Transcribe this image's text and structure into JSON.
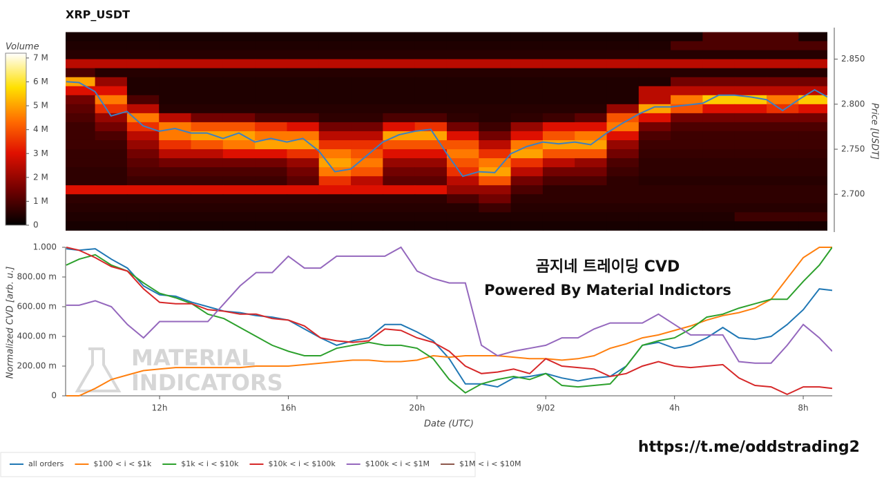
{
  "chart_data": [
    {
      "type": "heatmap",
      "title": "XRP_USDT",
      "ylabel": "Price [USDT]",
      "xlim": [
        9.08,
        32.9
      ],
      "ylim": [
        2.658,
        2.885
      ],
      "yticks": [
        {
          "value": 2.7,
          "label": "2.700"
        },
        {
          "value": 2.75,
          "label": "2.750"
        },
        {
          "value": 2.8,
          "label": "2.800"
        },
        {
          "value": 2.85,
          "label": "2.850"
        }
      ],
      "colorbar_title": "Volume",
      "zlim": [
        0,
        7.2
      ],
      "colorbar_ticks": [
        0,
        {
          "value": 1,
          "label": "1 M"
        },
        {
          "value": 2,
          "label": "2 M"
        },
        {
          "value": 3,
          "label": "3 M"
        },
        {
          "value": 4,
          "label": "4 M"
        },
        {
          "value": 5,
          "label": "5 M"
        },
        {
          "value": 6,
          "label": "6 M"
        },
        {
          "value": 7,
          "label": "7 M"
        }
      ],
      "x": [
        9.5,
        10.5,
        11.5,
        12.5,
        13.5,
        14.5,
        15.5,
        16.5,
        17.5,
        18.5,
        19.5,
        20.5,
        21.5,
        22.5,
        23.5,
        24.5,
        25.5,
        26.5,
        27.5,
        28.5,
        29.5,
        30.5,
        31.5,
        32.5
      ],
      "y": [
        2.875,
        2.865,
        2.855,
        2.845,
        2.835,
        2.825,
        2.815,
        2.805,
        2.795,
        2.785,
        2.775,
        2.765,
        2.755,
        2.745,
        2.735,
        2.725,
        2.715,
        2.705,
        2.695,
        2.685,
        2.675,
        2.665
      ],
      "z": [
        [
          0.3,
          0.3,
          0.3,
          0.3,
          0.3,
          0.3,
          0.3,
          0.3,
          0.3,
          0.3,
          0.3,
          0.3,
          0.3,
          0.3,
          0.3,
          0.3,
          0.3,
          0.3,
          0.3,
          0.3,
          1.0,
          1.0,
          1.0,
          0.3
        ],
        [
          0.4,
          0.4,
          0.4,
          0.4,
          0.4,
          0.4,
          0.4,
          0.4,
          0.4,
          0.4,
          0.4,
          0.4,
          0.4,
          0.4,
          0.4,
          0.4,
          0.4,
          0.4,
          0.4,
          1.0,
          1.0,
          1.0,
          1.0,
          1.0
        ],
        [
          0.5,
          0.5,
          0.5,
          0.5,
          0.5,
          0.5,
          0.5,
          0.5,
          0.5,
          0.5,
          0.5,
          0.5,
          0.5,
          0.5,
          0.5,
          0.5,
          0.5,
          0.5,
          0.5,
          0.5,
          0.5,
          0.5,
          0.5,
          0.5
        ],
        [
          2.5,
          2.5,
          2.5,
          2.5,
          2.5,
          2.5,
          2.5,
          2.5,
          2.5,
          2.5,
          2.5,
          2.5,
          2.5,
          2.5,
          2.5,
          2.5,
          2.5,
          2.5,
          2.5,
          2.5,
          2.5,
          2.5,
          2.5,
          2.5
        ],
        [
          1.0,
          0.5,
          0.5,
          0.5,
          0.5,
          0.5,
          0.5,
          0.5,
          0.5,
          0.5,
          0.5,
          0.5,
          0.5,
          0.5,
          0.5,
          0.5,
          0.5,
          0.5,
          0.5,
          0.5,
          0.5,
          0.5,
          0.5,
          0.5
        ],
        [
          5.0,
          2.0,
          0.4,
          0.4,
          0.4,
          0.4,
          0.4,
          0.4,
          0.4,
          0.4,
          0.4,
          0.4,
          0.4,
          0.4,
          0.4,
          0.4,
          0.4,
          0.4,
          0.4,
          1.5,
          1.5,
          1.5,
          1.5,
          1.5
        ],
        [
          3.0,
          3.0,
          0.4,
          0.4,
          0.4,
          0.4,
          0.4,
          0.4,
          0.4,
          0.4,
          0.4,
          0.4,
          0.4,
          0.4,
          0.4,
          0.4,
          0.4,
          0.4,
          2.5,
          2.5,
          2.5,
          2.5,
          2.5,
          2.5
        ],
        [
          1.5,
          4.5,
          1.0,
          0.4,
          0.4,
          0.4,
          0.4,
          0.4,
          0.4,
          0.4,
          0.4,
          0.4,
          0.4,
          0.4,
          0.4,
          0.4,
          0.4,
          0.4,
          2.5,
          4.5,
          5.5,
          5.5,
          4.5,
          5.5
        ],
        [
          1.2,
          3.5,
          2.5,
          0.5,
          0.5,
          0.5,
          0.5,
          0.5,
          0.5,
          0.5,
          0.5,
          0.5,
          0.5,
          0.5,
          0.5,
          0.5,
          0.5,
          2.0,
          5.0,
          4.0,
          3.0,
          3.0,
          3.5,
          3.0
        ],
        [
          1.0,
          2.0,
          4.5,
          2.5,
          1.5,
          1.5,
          1.0,
          1.0,
          0.6,
          0.6,
          1.0,
          1.0,
          0.6,
          0.5,
          0.6,
          0.8,
          1.2,
          4.0,
          3.0,
          1.5,
          1.5,
          1.5,
          1.5,
          1.5
        ],
        [
          0.8,
          1.5,
          3.5,
          4.5,
          4.0,
          4.0,
          3.5,
          3.0,
          1.5,
          1.5,
          3.0,
          3.5,
          1.5,
          0.8,
          2.0,
          3.0,
          3.0,
          4.5,
          1.5,
          1.0,
          1.0,
          1.0,
          1.0,
          1.0
        ],
        [
          0.8,
          1.0,
          2.5,
          4.5,
          5.0,
          5.0,
          4.5,
          4.5,
          2.5,
          2.5,
          5.0,
          5.0,
          3.0,
          1.5,
          3.0,
          4.0,
          4.5,
          3.0,
          1.0,
          0.8,
          0.8,
          0.8,
          0.8,
          0.8
        ],
        [
          0.8,
          0.8,
          2.0,
          3.5,
          4.0,
          4.5,
          5.0,
          5.0,
          3.5,
          3.5,
          4.0,
          4.0,
          4.0,
          2.5,
          4.5,
          5.0,
          5.0,
          2.0,
          0.8,
          0.8,
          0.8,
          0.8,
          0.8,
          0.8
        ],
        [
          0.7,
          0.7,
          1.5,
          2.5,
          2.5,
          3.0,
          3.0,
          3.5,
          4.5,
          4.0,
          3.0,
          3.0,
          4.5,
          3.5,
          5.0,
          4.0,
          4.0,
          1.5,
          0.7,
          0.7,
          0.7,
          0.7,
          0.7,
          0.7
        ],
        [
          0.7,
          0.7,
          1.2,
          1.5,
          1.5,
          1.5,
          1.5,
          2.0,
          5.0,
          4.5,
          2.0,
          2.0,
          4.0,
          4.5,
          3.5,
          2.5,
          2.0,
          1.0,
          0.6,
          0.6,
          0.6,
          0.6,
          0.6,
          0.6
        ],
        [
          0.6,
          0.6,
          1.0,
          1.0,
          1.0,
          1.0,
          1.0,
          1.5,
          4.5,
          4.0,
          1.5,
          1.5,
          3.5,
          5.0,
          2.5,
          1.5,
          1.5,
          0.8,
          0.6,
          0.6,
          0.6,
          0.6,
          0.6,
          0.6
        ],
        [
          0.6,
          0.6,
          0.8,
          0.8,
          0.8,
          0.8,
          0.8,
          1.2,
          3.5,
          2.5,
          1.2,
          1.2,
          2.5,
          4.0,
          1.5,
          1.0,
          1.0,
          0.6,
          0.5,
          0.5,
          0.5,
          0.5,
          0.5,
          0.5
        ],
        [
          3.0,
          3.0,
          3.0,
          3.0,
          3.0,
          3.0,
          3.0,
          3.0,
          3.0,
          3.0,
          3.0,
          3.0,
          2.0,
          2.0,
          1.0,
          0.6,
          0.6,
          0.6,
          0.6,
          0.6,
          0.6,
          0.6,
          0.6,
          0.6
        ],
        [
          0.6,
          0.6,
          0.6,
          0.6,
          0.6,
          0.6,
          0.6,
          0.6,
          0.6,
          0.6,
          0.6,
          0.6,
          1.0,
          1.5,
          0.6,
          0.6,
          0.6,
          0.6,
          0.6,
          0.6,
          0.6,
          0.6,
          0.6,
          0.6
        ],
        [
          0.5,
          0.5,
          0.5,
          0.5,
          0.5,
          0.5,
          0.5,
          0.5,
          0.5,
          0.5,
          0.5,
          0.5,
          0.5,
          0.8,
          0.5,
          0.5,
          0.5,
          0.5,
          0.5,
          0.5,
          0.5,
          0.5,
          0.5,
          0.5
        ],
        [
          0.4,
          0.4,
          0.4,
          0.4,
          0.4,
          0.4,
          0.4,
          0.4,
          0.4,
          0.4,
          0.4,
          0.4,
          0.4,
          0.4,
          0.4,
          0.4,
          0.4,
          0.4,
          0.4,
          0.4,
          0.4,
          0.8,
          0.8,
          0.8
        ],
        [
          0.3,
          0.3,
          0.3,
          0.3,
          0.3,
          0.3,
          0.3,
          0.3,
          0.3,
          0.3,
          0.3,
          0.3,
          0.3,
          0.3,
          0.3,
          0.3,
          0.3,
          0.3,
          0.3,
          0.3,
          0.3,
          0.3,
          0.3,
          0.3
        ]
      ],
      "price_line": {
        "color": "#3b7fc4",
        "x": [
          9.1,
          9.5,
          10,
          10.5,
          11,
          11.5,
          12,
          12.5,
          13,
          13.5,
          14,
          14.5,
          15,
          15.5,
          16,
          16.5,
          17,
          17.5,
          18,
          18.5,
          19,
          19.5,
          20,
          20.5,
          21,
          21.5,
          22,
          22.5,
          23,
          23.5,
          24,
          24.5,
          25,
          25.5,
          26,
          26.5,
          27,
          27.5,
          28,
          28.5,
          29,
          29.5,
          30,
          30.5,
          31,
          31.5,
          32,
          32.5,
          32.9
        ],
        "values": [
          2.825,
          2.824,
          2.814,
          2.787,
          2.792,
          2.776,
          2.77,
          2.773,
          2.768,
          2.768,
          2.762,
          2.768,
          2.758,
          2.762,
          2.758,
          2.762,
          2.748,
          2.725,
          2.728,
          2.743,
          2.758,
          2.766,
          2.77,
          2.772,
          2.745,
          2.72,
          2.725,
          2.724,
          2.745,
          2.753,
          2.758,
          2.756,
          2.758,
          2.755,
          2.768,
          2.779,
          2.789,
          2.797,
          2.797,
          2.799,
          2.801,
          2.81,
          2.81,
          2.808,
          2.805,
          2.793,
          2.805,
          2.816,
          2.808
        ]
      }
    },
    {
      "type": "line",
      "xlabel": "Date (UTC)",
      "ylabel": "Normalized CVD [arb. u.]",
      "xlim": [
        9.08,
        32.9
      ],
      "ylim": [
        0,
        1
      ],
      "xticks": [
        {
          "value": 12,
          "label": "12h"
        },
        {
          "value": 16,
          "label": "16h"
        },
        {
          "value": 20,
          "label": "20h"
        },
        {
          "value": 24,
          "label": "9/02"
        },
        {
          "value": 28,
          "label": "4h"
        },
        {
          "value": 32,
          "label": "8h"
        }
      ],
      "yticks": [
        0,
        {
          "value": 0.2,
          "label": "200.00 m"
        },
        {
          "value": 0.4,
          "label": "400.00 m"
        },
        {
          "value": 0.6,
          "label": "600.00 m"
        },
        {
          "value": 0.8,
          "label": "800.00 m"
        },
        {
          "value": 1,
          "label": "1.000"
        }
      ],
      "annotations": [
        "곰지네 트레이딩 CVD",
        "Powered By Material Indictors"
      ],
      "watermark": [
        "MATERIAL",
        "INDICATORS"
      ],
      "footer": "https://t.me/oddstrading2",
      "x": [
        9.1,
        9.5,
        10,
        10.5,
        11,
        11.5,
        12,
        12.5,
        13,
        13.5,
        14,
        14.5,
        15,
        15.5,
        16,
        16.5,
        17,
        17.5,
        18,
        18.5,
        19,
        19.5,
        20,
        20.5,
        21,
        21.5,
        22,
        22.5,
        23,
        23.5,
        24,
        24.5,
        25,
        25.5,
        26,
        26.5,
        27,
        27.5,
        28,
        28.5,
        29,
        29.5,
        30,
        30.5,
        31,
        31.5,
        32,
        32.5,
        32.9
      ],
      "series": [
        {
          "name": "all orders",
          "color": "#1f77b4",
          "values": [
            0.99,
            0.98,
            0.99,
            0.92,
            0.86,
            0.74,
            0.68,
            0.67,
            0.63,
            0.6,
            0.57,
            0.56,
            0.54,
            0.53,
            0.51,
            0.45,
            0.39,
            0.34,
            0.37,
            0.39,
            0.48,
            0.48,
            0.43,
            0.37,
            0.25,
            0.08,
            0.08,
            0.06,
            0.12,
            0.13,
            0.15,
            0.12,
            0.1,
            0.12,
            0.13,
            0.2,
            0.34,
            0.36,
            0.32,
            0.34,
            0.39,
            0.46,
            0.39,
            0.38,
            0.4,
            0.48,
            0.58,
            0.72,
            0.71
          ]
        },
        {
          "name": "$100 < i < $1k",
          "color": "#ff7f0e",
          "values": [
            0,
            0,
            0.05,
            0.11,
            0.14,
            0.17,
            0.18,
            0.19,
            0.19,
            0.19,
            0.19,
            0.19,
            0.2,
            0.2,
            0.2,
            0.21,
            0.22,
            0.23,
            0.24,
            0.24,
            0.23,
            0.23,
            0.24,
            0.27,
            0.26,
            0.27,
            0.27,
            0.27,
            0.26,
            0.25,
            0.25,
            0.24,
            0.25,
            0.27,
            0.32,
            0.35,
            0.39,
            0.41,
            0.44,
            0.47,
            0.51,
            0.54,
            0.56,
            0.59,
            0.65,
            0.79,
            0.93,
            1,
            1
          ]
        },
        {
          "name": "$1k < i < $10k",
          "color": "#2ca02c",
          "values": [
            0.88,
            0.92,
            0.95,
            0.88,
            0.84,
            0.76,
            0.69,
            0.66,
            0.62,
            0.55,
            0.52,
            0.46,
            0.4,
            0.34,
            0.3,
            0.27,
            0.27,
            0.32,
            0.34,
            0.36,
            0.34,
            0.34,
            0.32,
            0.25,
            0.11,
            0.02,
            0.08,
            0.11,
            0.13,
            0.11,
            0.15,
            0.07,
            0.06,
            0.07,
            0.08,
            0.2,
            0.34,
            0.37,
            0.39,
            0.45,
            0.53,
            0.55,
            0.59,
            0.62,
            0.65,
            0.65,
            0.77,
            0.88,
            1
          ]
        },
        {
          "name": "$10k < i < $100k",
          "color": "#d62728",
          "values": [
            1,
            0.98,
            0.93,
            0.87,
            0.84,
            0.72,
            0.63,
            0.62,
            0.62,
            0.58,
            0.57,
            0.55,
            0.55,
            0.52,
            0.51,
            0.47,
            0.39,
            0.37,
            0.36,
            0.37,
            0.45,
            0.44,
            0.39,
            0.36,
            0.3,
            0.2,
            0.15,
            0.16,
            0.18,
            0.15,
            0.25,
            0.2,
            0.19,
            0.18,
            0.13,
            0.15,
            0.2,
            0.23,
            0.2,
            0.19,
            0.2,
            0.21,
            0.12,
            0.07,
            0.06,
            0.01,
            0.06,
            0.06,
            0.05
          ]
        },
        {
          "name": "$100k < i < $1M",
          "color": "#9467bd",
          "values": [
            0.61,
            0.61,
            0.64,
            0.6,
            0.48,
            0.39,
            0.5,
            0.5,
            0.5,
            0.5,
            0.62,
            0.74,
            0.83,
            0.83,
            0.94,
            0.86,
            0.86,
            0.94,
            0.94,
            0.94,
            0.94,
            1,
            0.84,
            0.79,
            0.76,
            0.76,
            0.34,
            0.27,
            0.3,
            0.32,
            0.34,
            0.39,
            0.39,
            0.45,
            0.49,
            0.49,
            0.49,
            0.55,
            0.48,
            0.41,
            0.41,
            0.41,
            0.23,
            0.22,
            0.22,
            0.34,
            0.48,
            0.39,
            0.3
          ]
        },
        {
          "name": "$1M < i < $10M",
          "color": "#8c564b",
          "values": [
            null,
            null,
            null,
            null,
            null,
            null,
            null,
            null,
            null,
            null,
            null,
            null,
            null,
            null,
            null,
            null,
            null,
            null,
            null,
            null,
            null,
            null,
            null,
            null,
            null,
            null,
            null,
            null,
            null,
            null,
            null,
            null,
            null,
            null,
            null,
            null,
            null,
            null,
            null,
            null,
            null,
            null,
            null,
            null,
            null,
            null,
            null,
            null,
            null
          ]
        }
      ]
    }
  ]
}
